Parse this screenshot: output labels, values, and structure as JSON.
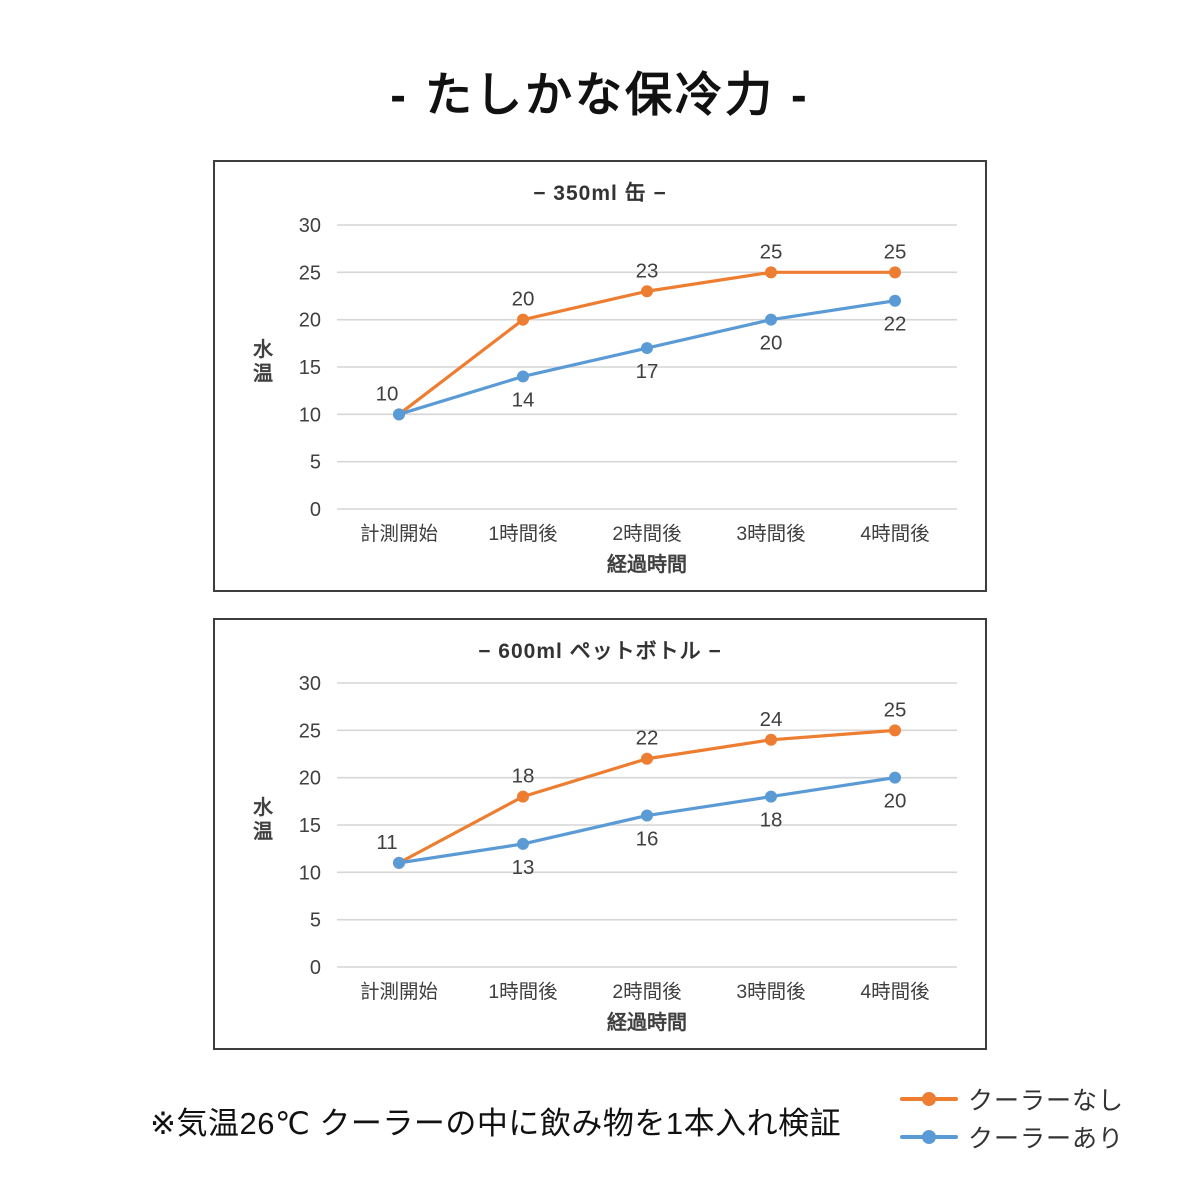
{
  "page": {
    "title": "- たしかな保冷力 -",
    "footnote": "※気温26℃ クーラーの中に飲み物を1本入れ検証"
  },
  "colors": {
    "no_cooler": "#ED7D31",
    "with_cooler": "#5B9BD5",
    "gridline": "#D6D6D6",
    "axis_text": "#404040",
    "panel_border": "#3d3d3d"
  },
  "legend": [
    {
      "label": "クーラーなし",
      "color": "#ED7D31"
    },
    {
      "label": "クーラーあり",
      "color": "#5B9BD5"
    }
  ],
  "chart_data": [
    {
      "type": "line",
      "title": "− 350ml 缶 −",
      "categories": [
        "計測開始",
        "1時間後",
        "2時間後",
        "3時間後",
        "4時間後"
      ],
      "series": [
        {
          "name": "クーラーなし",
          "color": "#ED7D31",
          "values": [
            10,
            20,
            23,
            25,
            25
          ]
        },
        {
          "name": "クーラーあり",
          "color": "#5B9BD5",
          "values": [
            10,
            14,
            17,
            20,
            22
          ]
        }
      ],
      "xlabel": "経過時間",
      "ylabel": "水温",
      "ylim": [
        0,
        30
      ],
      "yticks": [
        0,
        5,
        10,
        15,
        20,
        25,
        30
      ],
      "grid": true,
      "legend_position": "shared-bottom-right"
    },
    {
      "type": "line",
      "title": "− 600ml ペットボトル −",
      "categories": [
        "計測開始",
        "1時間後",
        "2時間後",
        "3時間後",
        "4時間後"
      ],
      "series": [
        {
          "name": "クーラーなし",
          "color": "#ED7D31",
          "values": [
            11,
            18,
            22,
            24,
            25
          ]
        },
        {
          "name": "クーラーあり",
          "color": "#5B9BD5",
          "values": [
            11,
            13,
            16,
            18,
            20
          ]
        }
      ],
      "xlabel": "経過時間",
      "ylabel": "水温",
      "ylim": [
        0,
        30
      ],
      "yticks": [
        0,
        5,
        10,
        15,
        20,
        25,
        30
      ],
      "grid": true,
      "legend_position": "shared-bottom-right"
    }
  ]
}
